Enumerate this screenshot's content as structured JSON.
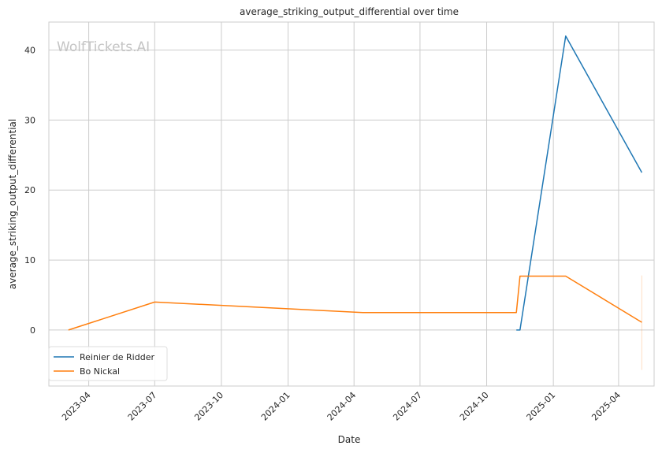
{
  "chart_data": {
    "type": "line",
    "title": "average_striking_output_differential over time",
    "xlabel": "Date",
    "ylabel": "average_striking_output_differential",
    "watermark": "WolfTickets.AI",
    "x_ticks": [
      "2023-04",
      "2023-07",
      "2023-10",
      "2024-01",
      "2024-04",
      "2024-07",
      "2024-10",
      "2025-01",
      "2025-04"
    ],
    "y_ticks": [
      0,
      10,
      20,
      30,
      40
    ],
    "ylim": [
      -8,
      44
    ],
    "xlim": [
      "2023-02-05",
      "2025-05-20"
    ],
    "grid": true,
    "legend_position": "lower-left",
    "series": [
      {
        "name": "Reinier de Ridder",
        "color": "#1f77b4",
        "points": [
          {
            "x": "2024-11-11",
            "y": 0
          },
          {
            "x": "2024-11-16",
            "y": 0
          },
          {
            "x": "2025-01-18",
            "y": 42
          },
          {
            "x": "2025-05-03",
            "y": 22.5
          }
        ]
      },
      {
        "name": "Bo Nickal",
        "color": "#ff7f0e",
        "points": [
          {
            "x": "2023-03-04",
            "y": 0
          },
          {
            "x": "2023-07-01",
            "y": 4
          },
          {
            "x": "2024-04-13",
            "y": 2.5
          },
          {
            "x": "2024-11-11",
            "y": 2.5
          },
          {
            "x": "2024-11-16",
            "y": 7.7
          },
          {
            "x": "2025-01-18",
            "y": 7.7
          },
          {
            "x": "2025-05-03",
            "y": 1.1
          }
        ],
        "error_band": {
          "x": "2025-05-03",
          "low": -5.7,
          "high": 7.8
        }
      }
    ]
  }
}
